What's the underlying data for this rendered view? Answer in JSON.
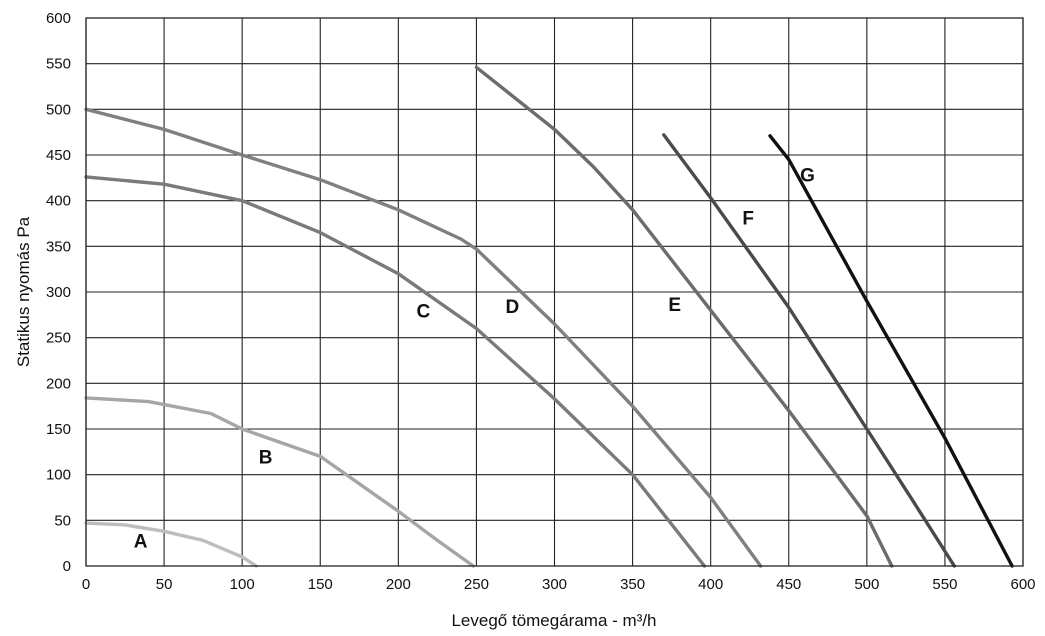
{
  "chart_data": {
    "type": "line",
    "title": "",
    "xlabel": "Levegő tömegárama - m³/h",
    "ylabel": "Statikus nyomás Pa",
    "xlim": [
      0,
      600
    ],
    "ylim": [
      0,
      600
    ],
    "x_ticks": [
      "0",
      "50",
      "100",
      "150",
      "200",
      "250",
      "300",
      "350",
      "400",
      "450",
      "500",
      "550",
      "600"
    ],
    "y_ticks": [
      "0",
      "50",
      "100",
      "150",
      "200",
      "250",
      "300",
      "350",
      "400",
      "450",
      "500",
      "550",
      "600"
    ],
    "grid": true,
    "legend": "none",
    "series": [
      {
        "name": "A",
        "color": "#bdbdbd",
        "label_at": [
          35,
          20
        ],
        "points": [
          [
            0,
            47
          ],
          [
            25,
            45
          ],
          [
            50,
            38
          ],
          [
            75,
            28
          ],
          [
            100,
            10
          ],
          [
            109,
            0
          ]
        ]
      },
      {
        "name": "B",
        "color": "#a6a6a6",
        "label_at": [
          115,
          112
        ],
        "points": [
          [
            0,
            184
          ],
          [
            40,
            180
          ],
          [
            80,
            167
          ],
          [
            100,
            150
          ],
          [
            150,
            120
          ],
          [
            200,
            60
          ],
          [
            225,
            28
          ],
          [
            248,
            0
          ]
        ]
      },
      {
        "name": "C",
        "color": "#7a7a7a",
        "label_at": [
          216,
          272
        ],
        "points": [
          [
            0,
            426
          ],
          [
            50,
            418
          ],
          [
            100,
            400
          ],
          [
            150,
            365
          ],
          [
            200,
            320
          ],
          [
            250,
            260
          ],
          [
            300,
            183
          ],
          [
            350,
            100
          ],
          [
            396,
            0
          ]
        ]
      },
      {
        "name": "D",
        "color": "#808080",
        "label_at": [
          273,
          277
        ],
        "points": [
          [
            0,
            500
          ],
          [
            50,
            478
          ],
          [
            100,
            450
          ],
          [
            150,
            423
          ],
          [
            200,
            390
          ],
          [
            240,
            358
          ],
          [
            250,
            347
          ],
          [
            300,
            265
          ],
          [
            350,
            175
          ],
          [
            400,
            75
          ],
          [
            432,
            0
          ]
        ]
      },
      {
        "name": "E",
        "color": "#6c6c6c",
        "label_at": [
          377,
          279
        ],
        "points": [
          [
            250,
            546
          ],
          [
            300,
            478
          ],
          [
            325,
            437
          ],
          [
            350,
            390
          ],
          [
            400,
            280
          ],
          [
            450,
            170
          ],
          [
            500,
            55
          ],
          [
            516,
            0
          ]
        ]
      },
      {
        "name": "F",
        "color": "#4a4a4a",
        "label_at": [
          424,
          374
        ],
        "points": [
          [
            370,
            472
          ],
          [
            400,
            403
          ],
          [
            450,
            283
          ],
          [
            500,
            150
          ],
          [
            530,
            70
          ],
          [
            556,
            0
          ]
        ]
      },
      {
        "name": "G",
        "color": "#111111",
        "label_at": [
          462,
          421
        ],
        "points": [
          [
            438,
            471
          ],
          [
            450,
            445
          ],
          [
            500,
            290
          ],
          [
            550,
            140
          ],
          [
            593,
            0
          ]
        ]
      }
    ]
  }
}
